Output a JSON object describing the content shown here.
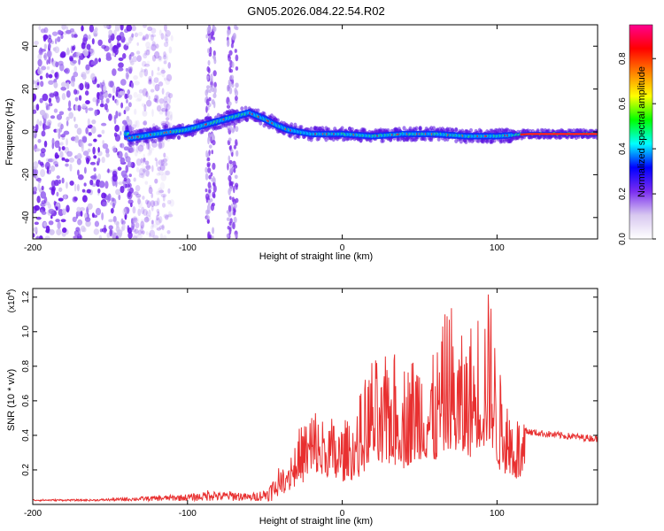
{
  "figure": {
    "title": "GN05.2026.084.22.54.R02"
  },
  "chart_data": [
    {
      "type": "heatmap",
      "xlabel": "Height of straight line (km)",
      "ylabel": "Frequency (Hz)",
      "xlim": [
        -200,
        165
      ],
      "ylim": [
        -50,
        50
      ],
      "xticks": [
        -200,
        -100,
        0,
        100
      ],
      "xtick_labels": [
        "-200",
        "-100",
        "0",
        "100"
      ],
      "yticks": [
        -40,
        -20,
        0,
        20,
        40
      ],
      "ytick_labels": [
        "-40",
        "-20",
        "0",
        "20",
        "40"
      ],
      "colorbar": {
        "label": "Normalized spectral amplitude",
        "range": [
          0,
          0.95
        ],
        "ticks": [
          0,
          0.2,
          0.4,
          0.6,
          0.8
        ],
        "tick_labels": [
          "0.0",
          "0.2",
          "0.4",
          "0.6",
          "0.8"
        ],
        "colormap": [
          "#ffffff",
          "#d8c8f0",
          "#7a2cf0",
          "#0000ff",
          "#00ffff",
          "#00ff00",
          "#ffff00",
          "#ff8000",
          "#ff0000",
          "#ff0090"
        ]
      },
      "ridge": {
        "x": [
          -138,
          -120,
          -100,
          -85,
          -70,
          -60,
          -50,
          -42,
          -35,
          -28,
          -20,
          -10,
          0,
          20,
          40,
          60,
          80,
          100,
          120,
          140,
          165
        ],
        "y": [
          -3,
          -1,
          1,
          4,
          7,
          9,
          6,
          3,
          1,
          0,
          -1,
          -1,
          -1,
          -2,
          -1,
          -1,
          -2,
          -2,
          -1,
          -1,
          -1
        ]
      },
      "noise_region_x": [
        -200,
        -135
      ],
      "vertical_streaks_x": [
        -85,
        -71
      ]
    },
    {
      "type": "line",
      "xlabel": "Height of straight line (km)",
      "ylabel": "SNR (10 * v/v)",
      "y_multiplier_label": "(x10",
      "y_multiplier_exp": "4",
      "xlim": [
        -200,
        165
      ],
      "ylim": [
        0,
        1.25
      ],
      "xticks": [
        -200,
        -100,
        0,
        100
      ],
      "xtick_labels": [
        "-200",
        "-100",
        "0",
        "100"
      ],
      "yticks": [
        0.2,
        0.4,
        0.6,
        0.8,
        1.0,
        1.2
      ],
      "ytick_labels": [
        "0.2",
        "0.4",
        "0.6",
        "0.8",
        "1.0",
        "1.2"
      ],
      "color": "#e83030",
      "series": [
        {
          "x": [
            -200,
            -180,
            -160,
            -140,
            -120,
            -100,
            -90,
            -85,
            -80,
            -70,
            -60,
            -50,
            -40,
            -30,
            -20,
            -10,
            0,
            10,
            20,
            25,
            30,
            40,
            50,
            60,
            70,
            72,
            80,
            90,
            96,
            100,
            110,
            120,
            140,
            165
          ],
          "y": [
            0.02,
            0.02,
            0.02,
            0.03,
            0.04,
            0.05,
            0.06,
            0.09,
            0.06,
            0.07,
            0.05,
            0.08,
            0.18,
            0.38,
            0.55,
            0.5,
            0.45,
            0.55,
            0.88,
            0.7,
            0.9,
            0.8,
            0.92,
            0.85,
            1.2,
            1.0,
            0.95,
            1.2,
            1.25,
            0.8,
            0.55,
            0.42,
            0.4,
            0.38
          ]
        }
      ]
    }
  ]
}
